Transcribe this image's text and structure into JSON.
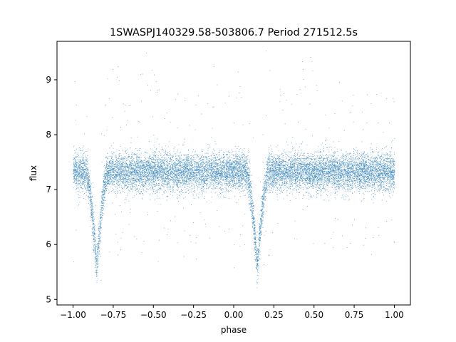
{
  "chart_data": {
    "type": "scatter",
    "title": "1SWASPJ140329.58-503806.7 Period 271512.5s",
    "xlabel": "phase",
    "ylabel": "flux",
    "xlim": [
      -1.1,
      1.1
    ],
    "ylim": [
      4.9,
      9.7
    ],
    "xticks": [
      -1.0,
      -0.75,
      -0.5,
      -0.25,
      0.0,
      0.25,
      0.5,
      0.75,
      1.0
    ],
    "xtick_labels": [
      "−1.00",
      "−0.75",
      "−0.50",
      "−0.25",
      "0.00",
      "0.25",
      "0.50",
      "0.75",
      "1.00"
    ],
    "yticks": [
      5,
      6,
      7,
      8,
      9
    ],
    "ytick_labels": [
      "5",
      "6",
      "7",
      "8",
      "9"
    ],
    "grid": false,
    "point_color": "#1f77b4",
    "series": [
      {
        "baseline_flux": 7.32,
        "baseline_scatter": 0.17,
        "x_range": [
          -1.0,
          1.0
        ],
        "eclipses": [
          {
            "phase_center": -0.855,
            "min_flux": 5.6,
            "half_width": 0.07
          },
          {
            "phase_center": 0.145,
            "min_flux": 5.6,
            "half_width": 0.07
          }
        ],
        "flares": [
          {
            "phase_center": -0.52,
            "max_flux": 9.2
          },
          {
            "phase_center": 0.48,
            "max_flux": 9.2
          },
          {
            "phase_center": -0.75,
            "max_flux": 8.4
          },
          {
            "phase_center": 0.25,
            "max_flux": 8.4
          }
        ],
        "point_count": 14000
      }
    ]
  }
}
